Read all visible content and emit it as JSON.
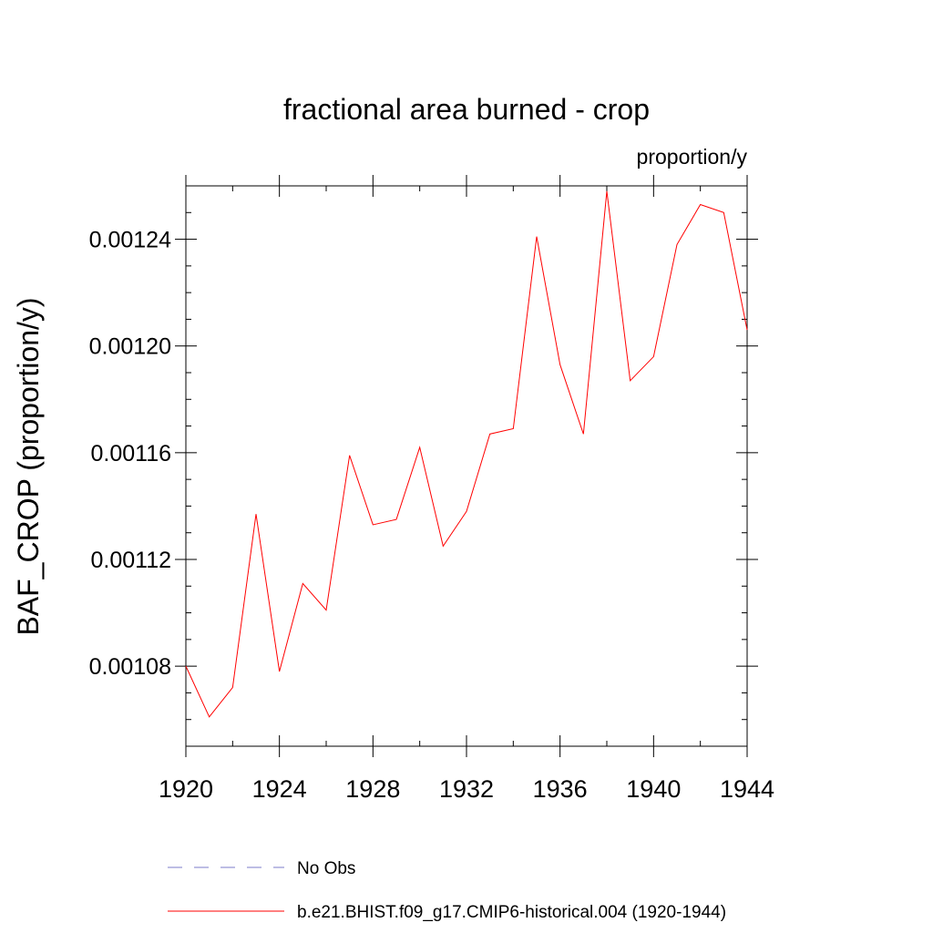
{
  "chart_data": {
    "type": "line",
    "title": "fractional area burned - crop",
    "units": "proportion/y",
    "ylabel": "BAF_CROP  (proportion/y)",
    "xlabel": "",
    "xlim": [
      1920,
      1944
    ],
    "ylim": [
      0.00105,
      0.00126
    ],
    "x_ticks": [
      1920,
      1924,
      1928,
      1932,
      1936,
      1940,
      1944
    ],
    "x_tick_labels": [
      "1920",
      "1924",
      "1928",
      "1932",
      "1936",
      "1940",
      "1944"
    ],
    "y_ticks": [
      0.00108,
      0.00112,
      0.00116,
      0.0012,
      0.00124
    ],
    "y_tick_labels": [
      "0.00108",
      "0.00112",
      "0.00116",
      "0.00120",
      "0.00124"
    ],
    "grid": false,
    "legend_position": "bottom",
    "series": [
      {
        "name": "No Obs",
        "color": "#7b7bc8",
        "style": "dashed",
        "x": [],
        "y": []
      },
      {
        "name": "b.e21.BHIST.f09_g17.CMIP6-historical.004 (1920-1944)",
        "color": "#ff0000",
        "style": "solid",
        "x": [
          1920,
          1921,
          1922,
          1923,
          1924,
          1925,
          1926,
          1927,
          1928,
          1929,
          1930,
          1931,
          1932,
          1933,
          1934,
          1935,
          1936,
          1937,
          1938,
          1939,
          1940,
          1941,
          1942,
          1943,
          1944
        ],
        "y": [
          0.00108,
          0.001061,
          0.001072,
          0.001137,
          0.001078,
          0.001111,
          0.001101,
          0.001159,
          0.001133,
          0.001135,
          0.001162,
          0.001125,
          0.001138,
          0.001167,
          0.001169,
          0.001241,
          0.001193,
          0.001167,
          0.001258,
          0.001187,
          0.001196,
          0.001238,
          0.001253,
          0.00125,
          0.001206
        ]
      }
    ]
  }
}
